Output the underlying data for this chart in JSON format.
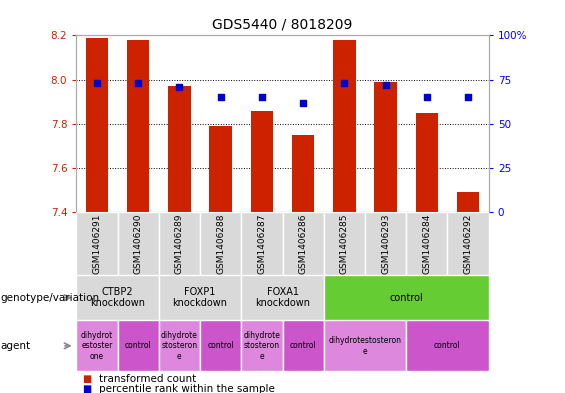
{
  "title": "GDS5440 / 8018209",
  "samples": [
    "GSM1406291",
    "GSM1406290",
    "GSM1406289",
    "GSM1406288",
    "GSM1406287",
    "GSM1406286",
    "GSM1406285",
    "GSM1406293",
    "GSM1406284",
    "GSM1406292"
  ],
  "transformed_count": [
    8.19,
    8.18,
    7.97,
    7.79,
    7.86,
    7.75,
    8.18,
    7.99,
    7.85,
    7.49
  ],
  "percentile_rank": [
    73,
    73,
    71,
    65,
    65,
    62,
    73,
    72,
    65,
    65
  ],
  "ylim_left": [
    7.4,
    8.2
  ],
  "ylim_right": [
    0,
    100
  ],
  "yticks_left": [
    7.4,
    7.6,
    7.8,
    8.0,
    8.2
  ],
  "yticks_right": [
    0,
    25,
    50,
    75,
    100
  ],
  "bar_color": "#cc2200",
  "dot_color": "#0000cc",
  "grid_color": "#000000",
  "genotype_groups": [
    {
      "label": "CTBP2\nknockdown",
      "start": 0,
      "end": 2,
      "color": "#d9d9d9"
    },
    {
      "label": "FOXP1\nknockdown",
      "start": 2,
      "end": 4,
      "color": "#d9d9d9"
    },
    {
      "label": "FOXA1\nknockdown",
      "start": 4,
      "end": 6,
      "color": "#d9d9d9"
    },
    {
      "label": "control",
      "start": 6,
      "end": 10,
      "color": "#66cc33"
    }
  ],
  "agent_groups": [
    {
      "label": "dihydrot\nestoster\none",
      "start": 0,
      "end": 1,
      "color": "#dd88dd"
    },
    {
      "label": "control",
      "start": 1,
      "end": 2,
      "color": "#cc55cc"
    },
    {
      "label": "dihydrote\nstosteron\ne",
      "start": 2,
      "end": 3,
      "color": "#dd88dd"
    },
    {
      "label": "control",
      "start": 3,
      "end": 4,
      "color": "#cc55cc"
    },
    {
      "label": "dihydrote\nstosteron\ne",
      "start": 4,
      "end": 5,
      "color": "#dd88dd"
    },
    {
      "label": "control",
      "start": 5,
      "end": 6,
      "color": "#cc55cc"
    },
    {
      "label": "dihydrotestosteron\ne",
      "start": 6,
      "end": 8,
      "color": "#dd88dd"
    },
    {
      "label": "control",
      "start": 8,
      "end": 10,
      "color": "#cc55cc"
    }
  ],
  "title_fontsize": 10,
  "tick_fontsize": 7.5,
  "sample_fontsize": 6.5,
  "annot_fontsize": 7,
  "agent_fontsize": 5.5,
  "label_fontsize": 7.5
}
